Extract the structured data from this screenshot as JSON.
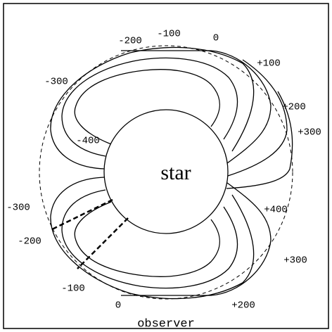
{
  "star": "star",
  "observer": "observer",
  "upper_labels": [
    "-200",
    "-100",
    "0",
    "+100",
    "+200",
    "+300",
    "-300",
    "-400"
  ],
  "lower_labels": [
    "-300",
    "-200",
    "-100",
    "0",
    "+200",
    "+300",
    "+400"
  ]
}
